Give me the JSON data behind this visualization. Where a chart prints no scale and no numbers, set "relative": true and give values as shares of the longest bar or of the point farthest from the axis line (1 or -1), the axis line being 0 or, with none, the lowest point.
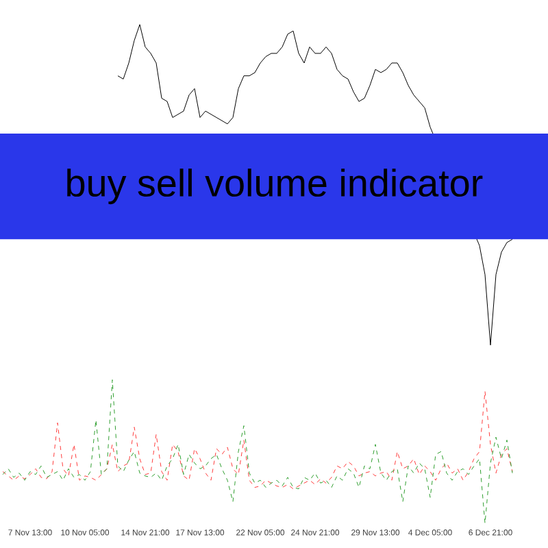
{
  "chart_data": [
    {
      "type": "line",
      "relative": true,
      "bands": [
        {
          "axis": "y",
          "from": 0.33,
          "to": 0.66,
          "label": "buy sell volume indicator",
          "color": "#2a37ea"
        }
      ],
      "categories": [
        null,
        null,
        null,
        null,
        null,
        null,
        null,
        null,
        null,
        null,
        null,
        null,
        null,
        null,
        null,
        null,
        null,
        null,
        null,
        null,
        null,
        null,
        null,
        null,
        null,
        null,
        null,
        null,
        null,
        null,
        null,
        null,
        null,
        null,
        null,
        null,
        null,
        null,
        null,
        null,
        null,
        null,
        null,
        null,
        null,
        null,
        null,
        null,
        null,
        null,
        null,
        null,
        null,
        null,
        null,
        null,
        null,
        null,
        null,
        null,
        null,
        null,
        null,
        null,
        null,
        null,
        null,
        null,
        null,
        null,
        null,
        null,
        null,
        null,
        null,
        null,
        null,
        null,
        null,
        null,
        null,
        null,
        null,
        null,
        null,
        null,
        null,
        null,
        null,
        null,
        null,
        null,
        null,
        null,
        null,
        null,
        null,
        null,
        null,
        null
      ],
      "series": [
        {
          "color": "#000000",
          "values": [
            null,
            null,
            null,
            null,
            null,
            null,
            null,
            null,
            null,
            null,
            null,
            null,
            null,
            null,
            null,
            null,
            null,
            null,
            null,
            null,
            null,
            0.84,
            0.83,
            0.88,
            0.95,
            1.0,
            0.93,
            0.91,
            0.88,
            0.77,
            0.76,
            0.71,
            null,
            0.73,
            0.78,
            0.8,
            0.71,
            0.73,
            null,
            null,
            null,
            0.69,
            0.71,
            0.8,
            0.84,
            0.84,
            0.85,
            0.88,
            0.9,
            0.91,
            0.91,
            0.93,
            0.97,
            0.98,
            0.91,
            0.88,
            0.93,
            0.91,
            0.91,
            0.93,
            0.91,
            0.86,
            0.84,
            0.83,
            0.79,
            0.76,
            0.77,
            0.81,
            0.86,
            0.85,
            0.86,
            0.88,
            0.88,
            0.85,
            0.81,
            0.78,
            0.76,
            0.74,
            0.68,
            null,
            null,
            null,
            null,
            null,
            null,
            null,
            null,
            0.31,
            0.22,
            0.0,
            0.22,
            0.29,
            0.32,
            0.33,
            null,
            null,
            null,
            null,
            null,
            null
          ]
        }
      ]
    },
    {
      "type": "line",
      "relative": true,
      "line_style": "dashed",
      "categories": [
        null,
        null,
        null,
        null,
        null,
        "7 Nov 13:00",
        null,
        null,
        null,
        null,
        null,
        null,
        null,
        null,
        null,
        "10 Nov 05:00",
        null,
        null,
        null,
        null,
        null,
        null,
        null,
        null,
        null,
        null,
        "14 Nov 21:00",
        null,
        null,
        null,
        null,
        null,
        null,
        null,
        null,
        null,
        "17 Nov 13:00",
        null,
        null,
        null,
        null,
        null,
        null,
        null,
        null,
        null,
        null,
        "22 Nov 05:00",
        null,
        null,
        null,
        null,
        null,
        null,
        null,
        null,
        null,
        "24 Nov 21:00",
        null,
        null,
        null,
        null,
        null,
        null,
        null,
        null,
        null,
        null,
        "29 Nov 13:00",
        null,
        null,
        null,
        null,
        null,
        null,
        null,
        null,
        null,
        "4 Dec 05:00",
        null,
        null,
        null,
        null,
        null,
        null,
        null,
        null,
        null,
        null,
        "6 Dec 21:00",
        null,
        null,
        null,
        null,
        null,
        null,
        null,
        null,
        null,
        null
      ],
      "series": [
        {
          "color": "#ff3b3b",
          "values": [
            0.36,
            0.33,
            0.3,
            0.33,
            0.31,
            0.34,
            0.38,
            0.32,
            0.31,
            0.36,
            0.7,
            0.38,
            0.33,
            0.55,
            0.3,
            0.33,
            0.32,
            0.3,
            0.34,
            0.38,
            0.55,
            0.36,
            0.4,
            0.42,
            0.67,
            0.45,
            0.34,
            0.35,
            0.62,
            0.36,
            0.3,
            0.55,
            0.5,
            0.33,
            0.3,
            0.52,
            0.45,
            0.35,
            0.3,
            0.52,
            0.48,
            0.53,
            0.38,
            0.34,
            0.58,
            0.3,
            0.25,
            0.26,
            0.3,
            0.28,
            0.26,
            0.25,
            0.27,
            0.24,
            0.26,
            0.28,
            0.3,
            0.27,
            0.31,
            0.28,
            0.32,
            0.4,
            0.38,
            0.43,
            0.4,
            0.33,
            0.35,
            0.36,
            0.33,
            0.35,
            0.36,
            0.3,
            0.5,
            0.38,
            0.4,
            0.45,
            0.34,
            0.4,
            0.36,
            0.3,
            0.38,
            0.42,
            0.35,
            0.38,
            0.3,
            0.36,
            0.45,
            0.5,
            0.92,
            0.55,
            0.35,
            0.48,
            0.52,
            0.36,
            null,
            null,
            null,
            null,
            null,
            null
          ]
        },
        {
          "color": "#2e9e2e",
          "values": [
            0.34,
            0.38,
            0.32,
            0.35,
            0.3,
            0.36,
            0.34,
            0.4,
            0.32,
            0.34,
            0.36,
            0.3,
            0.38,
            0.32,
            0.34,
            0.3,
            0.36,
            0.72,
            0.34,
            0.38,
            1.0,
            0.4,
            0.36,
            0.44,
            0.5,
            0.35,
            0.33,
            0.32,
            0.35,
            0.3,
            0.4,
            0.45,
            0.55,
            0.34,
            0.48,
            0.42,
            0.38,
            0.4,
            0.45,
            0.48,
            0.38,
            0.3,
            0.15,
            0.5,
            0.68,
            0.35,
            0.28,
            0.3,
            0.25,
            0.28,
            0.3,
            0.26,
            0.32,
            0.25,
            0.24,
            0.32,
            0.3,
            0.35,
            0.28,
            0.3,
            0.25,
            0.33,
            0.3,
            0.38,
            0.35,
            0.25,
            0.4,
            0.38,
            0.55,
            0.35,
            0.3,
            0.36,
            0.38,
            0.15,
            0.4,
            0.35,
            0.42,
            0.38,
            0.18,
            0.48,
            0.5,
            0.35,
            0.3,
            0.36,
            0.38,
            0.34,
            0.4,
            0.45,
            0.0,
            0.42,
            0.6,
            0.45,
            0.58,
            0.35,
            null,
            null,
            null,
            null,
            null,
            null
          ]
        }
      ]
    }
  ]
}
